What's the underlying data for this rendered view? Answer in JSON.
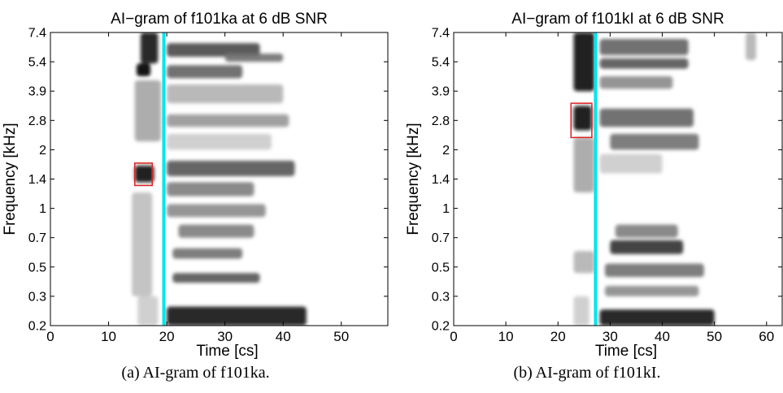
{
  "chart_data": [
    {
      "type": "heatmap",
      "title": "AI−gram of f101ka at 6 dB SNR",
      "xlabel": "Time [cs]",
      "ylabel": "Frequency [kHz]",
      "xlim": [
        0,
        58
      ],
      "x_ticks": [
        0,
        10,
        20,
        30,
        40,
        50
      ],
      "y_ticks": [
        "0.2",
        "0.3",
        "0.5",
        "0.7",
        "1",
        "1.4",
        "2",
        "2.8",
        "3.9",
        "5.4",
        "7.4"
      ],
      "y_scale": "cochlear (log-like), tick labels shown evenly spaced",
      "colormap": "grayscale, white = 0, black = high AI",
      "marker_line": {
        "time": 19.5,
        "color": "#00e5ee"
      },
      "highlight_box": {
        "time_range": [
          14.5,
          17.5
        ],
        "freq_range": [
          "1.3",
          "1.7"
        ],
        "color": "#e02020"
      },
      "caption": "(a)  AI-gram of f101ka.",
      "blobs": [
        {
          "t": [
            15.5,
            18.5
          ],
          "f": [
            5.3,
            7.4
          ],
          "d": 0.9
        },
        {
          "t": [
            14.8,
            17.2
          ],
          "f": [
            4.6,
            5.3
          ],
          "d": 0.98
        },
        {
          "t": [
            14.5,
            19
          ],
          "f": [
            2.2,
            4.4
          ],
          "d": 0.35
        },
        {
          "t": [
            14.5,
            17.8
          ],
          "f": [
            1.35,
            1.65
          ],
          "d": 0.97
        },
        {
          "t": [
            14,
            17.5
          ],
          "f": [
            0.3,
            1.2
          ],
          "d": 0.25
        },
        {
          "t": [
            15,
            18.5
          ],
          "f": [
            0.2,
            0.3
          ],
          "d": 0.2
        },
        {
          "t": [
            20,
            36
          ],
          "f": [
            5.7,
            6.6
          ],
          "d": 0.7
        },
        {
          "t": [
            30,
            40
          ],
          "f": [
            5.4,
            5.9
          ],
          "d": 0.55
        },
        {
          "t": [
            20,
            33
          ],
          "f": [
            4.5,
            5.2
          ],
          "d": 0.6
        },
        {
          "t": [
            20,
            40
          ],
          "f": [
            3.4,
            4.2
          ],
          "d": 0.3
        },
        {
          "t": [
            20,
            41
          ],
          "f": [
            2.6,
            3.0
          ],
          "d": 0.4
        },
        {
          "t": [
            20,
            38
          ],
          "f": [
            2.0,
            2.4
          ],
          "d": 0.2
        },
        {
          "t": [
            20,
            42
          ],
          "f": [
            1.45,
            1.75
          ],
          "d": 0.65
        },
        {
          "t": [
            20,
            35
          ],
          "f": [
            1.15,
            1.35
          ],
          "d": 0.5
        },
        {
          "t": [
            20,
            37
          ],
          "f": [
            0.9,
            1.05
          ],
          "d": 0.45
        },
        {
          "t": [
            22,
            35
          ],
          "f": [
            0.7,
            0.82
          ],
          "d": 0.5
        },
        {
          "t": [
            21,
            33
          ],
          "f": [
            0.55,
            0.62
          ],
          "d": 0.55
        },
        {
          "t": [
            21,
            36
          ],
          "f": [
            0.38,
            0.45
          ],
          "d": 0.65
        },
        {
          "t": [
            20,
            44
          ],
          "f": [
            0.2,
            0.26
          ],
          "d": 0.9
        }
      ]
    },
    {
      "type": "heatmap",
      "title": "AI−gram of f101kI at 6 dB SNR",
      "xlabel": "Time [cs]",
      "ylabel": "Frequency [kHz]",
      "xlim": [
        0,
        63
      ],
      "x_ticks": [
        0,
        10,
        20,
        30,
        40,
        50,
        60
      ],
      "y_ticks": [
        "0.2",
        "0.3",
        "0.5",
        "0.7",
        "1",
        "1.4",
        "2",
        "2.8",
        "3.9",
        "5.4",
        "7.4"
      ],
      "y_scale": "cochlear (log-like), tick labels shown evenly spaced",
      "colormap": "grayscale, white = 0, black = high AI",
      "marker_line": {
        "time": 27.2,
        "color": "#00e5ee"
      },
      "highlight_box": {
        "time_range": [
          22.5,
          26.5
        ],
        "freq_range": [
          "2.3",
          "3.4"
        ],
        "color": "#e02020"
      },
      "caption": "(b)  AI-gram of f101kI.",
      "blobs": [
        {
          "t": [
            23,
            27
          ],
          "f": [
            3.9,
            7.4
          ],
          "d": 0.95
        },
        {
          "t": [
            23,
            26.5
          ],
          "f": [
            2.5,
            3.3
          ],
          "d": 0.95
        },
        {
          "t": [
            23,
            27
          ],
          "f": [
            1.2,
            2.3
          ],
          "d": 0.35
        },
        {
          "t": [
            23,
            27
          ],
          "f": [
            0.45,
            0.6
          ],
          "d": 0.3
        },
        {
          "t": [
            23,
            26
          ],
          "f": [
            0.2,
            0.3
          ],
          "d": 0.2
        },
        {
          "t": [
            28,
            45
          ],
          "f": [
            5.8,
            6.9
          ],
          "d": 0.6
        },
        {
          "t": [
            28,
            45
          ],
          "f": [
            5.0,
            5.6
          ],
          "d": 0.65
        },
        {
          "t": [
            28,
            42
          ],
          "f": [
            4.0,
            4.6
          ],
          "d": 0.45
        },
        {
          "t": [
            28,
            46
          ],
          "f": [
            2.6,
            3.2
          ],
          "d": 0.6
        },
        {
          "t": [
            30,
            47
          ],
          "f": [
            2.0,
            2.4
          ],
          "d": 0.55
        },
        {
          "t": [
            28,
            40
          ],
          "f": [
            1.5,
            1.9
          ],
          "d": 0.2
        },
        {
          "t": [
            31,
            43
          ],
          "f": [
            0.7,
            0.82
          ],
          "d": 0.5
        },
        {
          "t": [
            30,
            44
          ],
          "f": [
            0.58,
            0.68
          ],
          "d": 0.8
        },
        {
          "t": [
            29,
            48
          ],
          "f": [
            0.42,
            0.52
          ],
          "d": 0.55
        },
        {
          "t": [
            29,
            47
          ],
          "f": [
            0.3,
            0.36
          ],
          "d": 0.45
        },
        {
          "t": [
            28,
            50
          ],
          "f": [
            0.2,
            0.25
          ],
          "d": 0.9
        },
        {
          "t": [
            56,
            58
          ],
          "f": [
            5.5,
            7.4
          ],
          "d": 0.3
        }
      ]
    }
  ]
}
